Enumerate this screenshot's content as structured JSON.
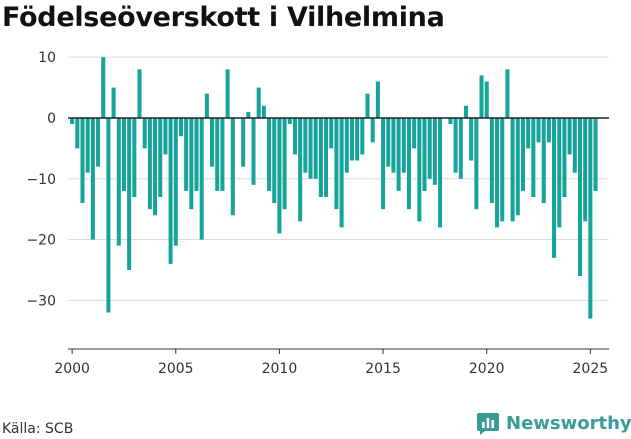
{
  "title": "Födelseöverskott i Vilhelmina",
  "source": "Källa: SCB",
  "brand": {
    "name": "Newsworthy",
    "icon": "newsworthy-logo-icon",
    "color": "#3a9c97"
  },
  "chart_data": {
    "type": "bar",
    "title": "Födelseöverskott i Vilhelmina",
    "xlabel": "",
    "ylabel": "",
    "xlim": [
      1999.8,
      2025.9
    ],
    "ylim": [
      -38,
      12
    ],
    "yticks": [
      10,
      0,
      -10,
      -20,
      -30
    ],
    "ytick_labels": [
      "10",
      "0",
      "−10",
      "−20",
      "−30"
    ],
    "xticks": [
      2000,
      2005,
      2010,
      2015,
      2020,
      2025
    ],
    "xtick_labels": [
      "2000",
      "2005",
      "2010",
      "2015",
      "2020",
      "2025"
    ],
    "grid": "horizontal",
    "legend": "none",
    "bar_color": "#16a39a",
    "zero_line_color": "#222222",
    "series": [
      {
        "values": [
          -1,
          -5,
          -14,
          -9,
          -20,
          -8,
          10,
          -32,
          5,
          -21,
          -12,
          -25,
          -13,
          8,
          -5,
          -15,
          -16,
          -13,
          -6,
          -24,
          -21,
          -3,
          -12,
          -15,
          -12,
          -20,
          4,
          -8,
          -12,
          -12,
          8,
          -16,
          0,
          -8,
          1,
          -11,
          5,
          2,
          -12,
          -14,
          -19,
          -15,
          -1,
          -6,
          -17,
          -9,
          -10,
          -10,
          -13,
          -13,
          -5,
          -15,
          -18,
          -9,
          -7,
          -7,
          -6,
          4,
          -4,
          6,
          -15,
          -8,
          -9,
          -12,
          -9,
          -15,
          -5,
          -17,
          -12,
          -10,
          -11,
          -18,
          0,
          -1,
          -9,
          -10,
          2,
          -7,
          -15,
          7,
          6,
          -14,
          -18,
          -17,
          8,
          -17,
          -16,
          -12,
          -5,
          -13,
          -4,
          -14,
          -4,
          -23,
          -18,
          -13,
          -6,
          -9,
          -26,
          -17,
          -33,
          -12
        ]
      }
    ]
  }
}
